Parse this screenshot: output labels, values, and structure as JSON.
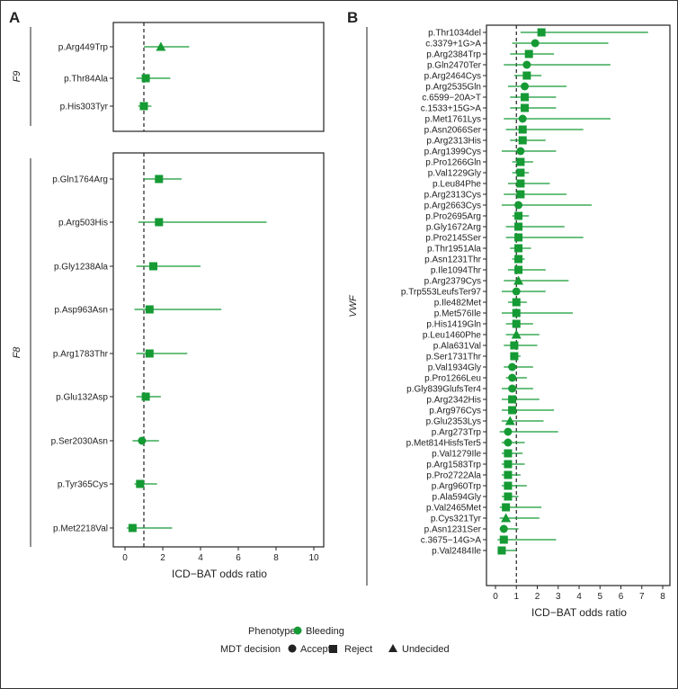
{
  "chart_data": [
    {
      "panel": "A",
      "type": "forest",
      "gene": "F9",
      "xlabel": "ICD−BAT odds ratio",
      "xlim": [
        0,
        10
      ],
      "xticks": [
        0,
        2,
        4,
        6,
        8,
        10
      ],
      "reference_line": 1,
      "variants": [
        {
          "label": "p.Arg449Trp",
          "or": 1.9,
          "lo": 1.0,
          "hi": 3.4,
          "decision": "Undecided"
        },
        {
          "label": "p.Thr84Ala",
          "or": 1.1,
          "lo": 0.6,
          "hi": 2.4,
          "decision": "Reject"
        },
        {
          "label": "p.His303Tyr",
          "or": 1.0,
          "lo": 0.7,
          "hi": 1.4,
          "decision": "Reject"
        }
      ]
    },
    {
      "panel": "A",
      "type": "forest",
      "gene": "F8",
      "xlabel": "ICD−BAT odds ratio",
      "xlim": [
        0,
        10
      ],
      "xticks": [
        0,
        2,
        4,
        6,
        8,
        10
      ],
      "reference_line": 1,
      "variants": [
        {
          "label": "p.Gln1764Arg",
          "or": 1.8,
          "lo": 1.0,
          "hi": 3.0,
          "decision": "Reject"
        },
        {
          "label": "p.Arg503His",
          "or": 1.8,
          "lo": 0.7,
          "hi": 7.5,
          "decision": "Reject"
        },
        {
          "label": "p.Gly1238Ala",
          "or": 1.5,
          "lo": 0.6,
          "hi": 4.0,
          "decision": "Reject"
        },
        {
          "label": "p.Asp963Asn",
          "or": 1.3,
          "lo": 0.5,
          "hi": 5.1,
          "decision": "Reject"
        },
        {
          "label": "p.Arg1783Thr",
          "or": 1.3,
          "lo": 0.6,
          "hi": 3.3,
          "decision": "Reject"
        },
        {
          "label": "p.Glu132Asp",
          "or": 1.1,
          "lo": 0.6,
          "hi": 1.9,
          "decision": "Reject"
        },
        {
          "label": "p.Ser2030Asn",
          "or": 0.9,
          "lo": 0.4,
          "hi": 1.8,
          "decision": "Accept"
        },
        {
          "label": "p.Tyr365Cys",
          "or": 0.8,
          "lo": 0.5,
          "hi": 1.7,
          "decision": "Reject"
        },
        {
          "label": "p.Met2218Val",
          "or": 0.4,
          "lo": 0.1,
          "hi": 2.5,
          "decision": "Reject"
        }
      ]
    },
    {
      "panel": "B",
      "type": "forest",
      "gene": "VWF",
      "xlabel": "ICD−BAT odds ratio",
      "xlim": [
        0,
        8
      ],
      "xticks": [
        0,
        1,
        2,
        3,
        4,
        5,
        6,
        7,
        8
      ],
      "reference_line": 1,
      "variants": [
        {
          "label": "p.Thr1034del",
          "or": 2.2,
          "lo": 1.2,
          "hi": 7.3,
          "decision": "Reject"
        },
        {
          "label": "c.3379+1G>A",
          "or": 1.9,
          "lo": 0.8,
          "hi": 5.4,
          "decision": "Accept"
        },
        {
          "label": "p.Arg2384Trp",
          "or": 1.6,
          "lo": 0.7,
          "hi": 2.8,
          "decision": "Reject"
        },
        {
          "label": "p.Gln2470Ter",
          "or": 1.5,
          "lo": 0.4,
          "hi": 5.5,
          "decision": "Accept"
        },
        {
          "label": "p.Arg2464Cys",
          "or": 1.5,
          "lo": 0.9,
          "hi": 2.2,
          "decision": "Reject"
        },
        {
          "label": "p.Arg2535Gln",
          "or": 1.4,
          "lo": 0.6,
          "hi": 3.4,
          "decision": "Accept"
        },
        {
          "label": "c.6599−20A>T",
          "or": 1.4,
          "lo": 0.7,
          "hi": 2.9,
          "decision": "Reject"
        },
        {
          "label": "c.1533+15G>A",
          "or": 1.4,
          "lo": 0.7,
          "hi": 2.9,
          "decision": "Reject"
        },
        {
          "label": "p.Met1761Lys",
          "or": 1.3,
          "lo": 0.4,
          "hi": 5.5,
          "decision": "Accept"
        },
        {
          "label": "p.Asn2066Ser",
          "or": 1.3,
          "lo": 0.5,
          "hi": 4.2,
          "decision": "Reject"
        },
        {
          "label": "p.Arg2313His",
          "or": 1.3,
          "lo": 0.7,
          "hi": 2.4,
          "decision": "Reject"
        },
        {
          "label": "p.Arg1399Cys",
          "or": 1.2,
          "lo": 0.3,
          "hi": 2.9,
          "decision": "Accept"
        },
        {
          "label": "p.Pro1266Gln",
          "or": 1.2,
          "lo": 0.8,
          "hi": 1.8,
          "decision": "Reject"
        },
        {
          "label": "p.Val1229Gly",
          "or": 1.2,
          "lo": 0.8,
          "hi": 1.6,
          "decision": "Reject"
        },
        {
          "label": "p.Leu84Phe",
          "or": 1.2,
          "lo": 0.6,
          "hi": 2.6,
          "decision": "Reject"
        },
        {
          "label": "p.Arg2313Cys",
          "or": 1.2,
          "lo": 0.4,
          "hi": 3.4,
          "decision": "Reject"
        },
        {
          "label": "p.Arg2663Cys",
          "or": 1.1,
          "lo": 0.3,
          "hi": 4.6,
          "decision": "Accept"
        },
        {
          "label": "p.Pro2695Arg",
          "or": 1.1,
          "lo": 0.8,
          "hi": 1.6,
          "decision": "Reject"
        },
        {
          "label": "p.Gly1672Arg",
          "or": 1.1,
          "lo": 0.5,
          "hi": 3.3,
          "decision": "Reject"
        },
        {
          "label": "p.Pro2145Ser",
          "or": 1.1,
          "lo": 0.5,
          "hi": 4.2,
          "decision": "Reject"
        },
        {
          "label": "p.Thr1951Ala",
          "or": 1.1,
          "lo": 0.7,
          "hi": 1.7,
          "decision": "Reject"
        },
        {
          "label": "p.Asn1231Thr",
          "or": 1.1,
          "lo": 0.8,
          "hi": 1.4,
          "decision": "Reject"
        },
        {
          "label": "p.Ile1094Thr",
          "or": 1.1,
          "lo": 0.6,
          "hi": 2.4,
          "decision": "Reject"
        },
        {
          "label": "p.Arg2379Cys",
          "or": 1.1,
          "lo": 0.4,
          "hi": 3.5,
          "decision": "Undecided"
        },
        {
          "label": "p.Trp553LeufsTer97",
          "or": 1.0,
          "lo": 0.3,
          "hi": 2.4,
          "decision": "Accept"
        },
        {
          "label": "p.Ile482Met",
          "or": 1.0,
          "lo": 0.6,
          "hi": 1.5,
          "decision": "Reject"
        },
        {
          "label": "p.Met576Ile",
          "or": 1.0,
          "lo": 0.3,
          "hi": 3.7,
          "decision": "Reject"
        },
        {
          "label": "p.His1419Gln",
          "or": 1.0,
          "lo": 0.5,
          "hi": 1.8,
          "decision": "Reject"
        },
        {
          "label": "p.Leu1460Phe",
          "or": 1.0,
          "lo": 0.5,
          "hi": 2.1,
          "decision": "Undecided"
        },
        {
          "label": "p.Ala631Val",
          "or": 0.9,
          "lo": 0.4,
          "hi": 2.0,
          "decision": "Reject"
        },
        {
          "label": "p.Ser1731Thr",
          "or": 0.9,
          "lo": 0.7,
          "hi": 1.2,
          "decision": "Reject"
        },
        {
          "label": "p.Val1934Gly",
          "or": 0.8,
          "lo": 0.4,
          "hi": 1.8,
          "decision": "Accept"
        },
        {
          "label": "p.Pro1266Leu",
          "or": 0.8,
          "lo": 0.5,
          "hi": 1.5,
          "decision": "Accept"
        },
        {
          "label": "p.Gly839GlufsTer4",
          "or": 0.8,
          "lo": 0.3,
          "hi": 1.8,
          "decision": "Accept"
        },
        {
          "label": "p.Arg2342His",
          "or": 0.8,
          "lo": 0.3,
          "hi": 2.1,
          "decision": "Reject"
        },
        {
          "label": "p.Arg976Cys",
          "or": 0.8,
          "lo": 0.3,
          "hi": 2.8,
          "decision": "Reject"
        },
        {
          "label": "p.Glu2353Lys",
          "or": 0.7,
          "lo": 0.3,
          "hi": 2.3,
          "decision": "Undecided"
        },
        {
          "label": "p.Arg273Trp",
          "or": 0.6,
          "lo": 0.2,
          "hi": 3.0,
          "decision": "Accept"
        },
        {
          "label": "p.Met814HisfsTer5",
          "or": 0.6,
          "lo": 0.3,
          "hi": 1.4,
          "decision": "Accept"
        },
        {
          "label": "p.Val1279Ile",
          "or": 0.6,
          "lo": 0.3,
          "hi": 1.3,
          "decision": "Reject"
        },
        {
          "label": "p.Arg1583Trp",
          "or": 0.6,
          "lo": 0.3,
          "hi": 1.4,
          "decision": "Reject"
        },
        {
          "label": "p.Pro2722Ala",
          "or": 0.6,
          "lo": 0.3,
          "hi": 1.2,
          "decision": "Reject"
        },
        {
          "label": "p.Arg960Trp",
          "or": 0.6,
          "lo": 0.3,
          "hi": 1.5,
          "decision": "Reject"
        },
        {
          "label": "p.Ala594Gly",
          "or": 0.6,
          "lo": 0.3,
          "hi": 1.1,
          "decision": "Reject"
        },
        {
          "label": "p.Val2465Met",
          "or": 0.5,
          "lo": 0.2,
          "hi": 2.2,
          "decision": "Reject"
        },
        {
          "label": "p.Cys321Tyr",
          "or": 0.5,
          "lo": 0.2,
          "hi": 2.1,
          "decision": "Undecided"
        },
        {
          "label": "p.Asn1231Ser",
          "or": 0.4,
          "lo": 0.2,
          "hi": 1.1,
          "decision": "Accept"
        },
        {
          "label": "c.3675−14G>A",
          "or": 0.4,
          "lo": 0.1,
          "hi": 2.9,
          "decision": "Reject"
        },
        {
          "label": "p.Val2484Ile",
          "or": 0.3,
          "lo": 0.1,
          "hi": 1.0,
          "decision": "Reject"
        }
      ]
    }
  ],
  "panels": {
    "a_label": "A",
    "b_label": "B"
  },
  "legend": {
    "phenotype_title": "Phenotype",
    "phenotype_item": "Bleeding",
    "decision_title": "MDT decision",
    "decision_items": [
      "Accept",
      "Reject",
      "Undecided"
    ]
  },
  "colors": {
    "series": "#159a34",
    "frame": "#222222",
    "text": "#222222",
    "background": "#ffffff"
  }
}
